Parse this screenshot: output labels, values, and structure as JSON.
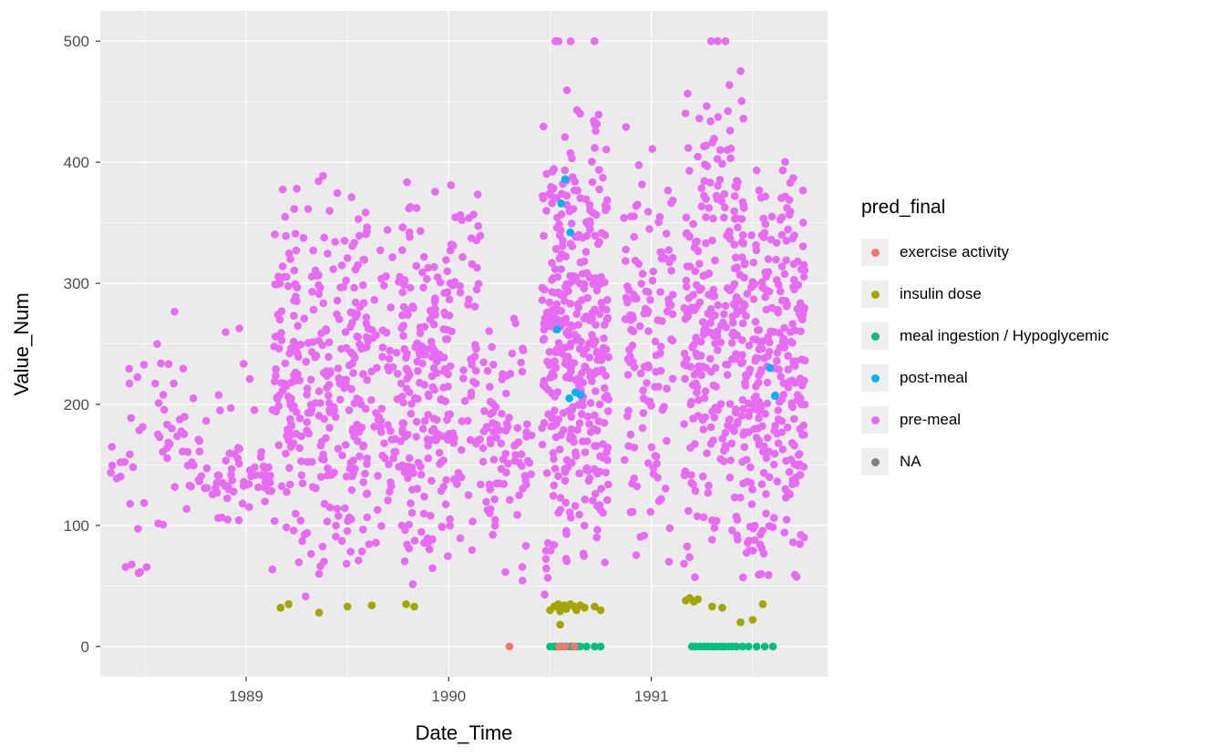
{
  "chart_data": {
    "type": "scatter",
    "title": "",
    "xlabel": "Date_Time",
    "ylabel": "Value_Num",
    "x_ticks": [
      1989,
      1990,
      1991
    ],
    "y_ticks": [
      0,
      100,
      200,
      300,
      400,
      500
    ],
    "x_minor": [
      1988.5,
      1989.5,
      1990.5,
      1991.5
    ],
    "y_minor": [
      50,
      150,
      250,
      350,
      450
    ],
    "xlim": [
      1988.28,
      1991.87
    ],
    "ylim": [
      -25,
      525
    ],
    "grid": true,
    "legend_position": "right",
    "colors": {
      "panel_bg": "#EBEBEB",
      "grid": "#FFFFFF",
      "tick": "#333333",
      "tick_label": "#4D4D4D",
      "key_bg": "#EFEFEF"
    },
    "legend": {
      "title": "pred_final",
      "entries": [
        {
          "label": "exercise activity",
          "color": "#F8766D"
        },
        {
          "label": "insulin dose",
          "color": "#A3A500"
        },
        {
          "label": "meal ingestion / Hypoglycemic",
          "color": "#00BF7D"
        },
        {
          "label": "post-meal",
          "color": "#00B0F6"
        },
        {
          "label": "pre-meal",
          "color": "#E76BF3"
        },
        {
          "label": "NA",
          "color": "#7F7F7F"
        }
      ]
    },
    "seed": 42,
    "point_radius": 4.3,
    "series": [
      {
        "name": "pre-meal",
        "color": "#E76BF3",
        "clusters": [
          {
            "x": [
              1988.32,
              1988.39
            ],
            "y": [
              112,
              172
            ],
            "n": 6,
            "d": "uni"
          },
          {
            "x": [
              1988.4,
              1988.53
            ],
            "y": [
              55,
              262
            ],
            "n": 18,
            "d": "uni"
          },
          {
            "x": [
              1988.55,
              1988.69
            ],
            "y": [
              58,
              290
            ],
            "n": 26,
            "d": "tri"
          },
          {
            "x": [
              1988.69,
              1988.82
            ],
            "y": [
              88,
              232
            ],
            "n": 20,
            "d": "tri"
          },
          {
            "x": [
              1988.83,
              1989.01
            ],
            "y": [
              100,
              170
            ],
            "n": 30,
            "d": "tri"
          },
          {
            "x": [
              1988.86,
              1989.05
            ],
            "y": [
              170,
              265
            ],
            "n": 8,
            "d": "uni"
          },
          {
            "x": [
              1989.01,
              1989.13
            ],
            "y": [
              108,
              162
            ],
            "n": 24,
            "d": "tri"
          },
          {
            "x": [
              1989.13,
              1989.31
            ],
            "y": [
              35,
              402
            ],
            "n": 120,
            "d": "tri"
          },
          {
            "x": [
              1989.31,
              1989.56
            ],
            "y": [
              40,
              400
            ],
            "n": 160,
            "d": "tri"
          },
          {
            "x": [
              1989.56,
              1989.76
            ],
            "y": [
              60,
              365
            ],
            "n": 90,
            "d": "tri"
          },
          {
            "x": [
              1989.76,
              1990.01
            ],
            "y": [
              40,
              395
            ],
            "n": 200,
            "d": "tri"
          },
          {
            "x": [
              1990.01,
              1990.16
            ],
            "y": [
              50,
              418
            ],
            "n": 60,
            "d": "tri"
          },
          {
            "x": [
              1990.16,
              1990.41
            ],
            "y": [
              45,
              300
            ],
            "n": 90,
            "d": "tri"
          },
          {
            "x": [
              1990.46,
              1990.61
            ],
            "y": [
              25,
              478
            ],
            "n": 180,
            "d": "tri"
          },
          {
            "x": [
              1990.61,
              1990.79
            ],
            "y": [
              30,
              462
            ],
            "n": 200,
            "d": "tri"
          },
          {
            "x": [
              1990.86,
              1991.11
            ],
            "y": [
              58,
              445
            ],
            "n": 130,
            "d": "tri"
          },
          {
            "x": [
              1991.16,
              1991.46
            ],
            "y": [
              35,
              492
            ],
            "n": 280,
            "d": "tri"
          },
          {
            "x": [
              1991.46,
              1991.76
            ],
            "y": [
              30,
              432
            ],
            "n": 280,
            "d": "tri"
          },
          {
            "x": [
              1990.52,
              1990.67
            ],
            "y": [
              500,
              500
            ],
            "n": 4,
            "d": "uni"
          },
          {
            "x": [
              1990.71,
              1990.72
            ],
            "y": [
              500,
              500
            ],
            "n": 1,
            "d": "uni"
          },
          {
            "x": [
              1991.27,
              1991.37
            ],
            "y": [
              500,
              500
            ],
            "n": 3,
            "d": "uni"
          }
        ]
      },
      {
        "name": "insulin dose",
        "color": "#A3A500",
        "points": [
          [
            1989.17,
            32
          ],
          [
            1989.21,
            35
          ],
          [
            1989.36,
            28
          ],
          [
            1989.5,
            33
          ],
          [
            1989.62,
            34
          ],
          [
            1989.79,
            35
          ],
          [
            1989.83,
            33
          ],
          [
            1990.5,
            30
          ],
          [
            1990.52,
            33
          ],
          [
            1990.54,
            35
          ],
          [
            1990.55,
            29
          ],
          [
            1990.57,
            34
          ],
          [
            1990.58,
            31
          ],
          [
            1990.6,
            35
          ],
          [
            1990.62,
            33
          ],
          [
            1990.63,
            30
          ],
          [
            1990.65,
            34
          ],
          [
            1990.67,
            32
          ],
          [
            1990.72,
            33
          ],
          [
            1990.75,
            30
          ],
          [
            1990.55,
            18
          ],
          [
            1991.17,
            38
          ],
          [
            1991.19,
            40
          ],
          [
            1991.21,
            37
          ],
          [
            1991.23,
            39
          ],
          [
            1991.3,
            33
          ],
          [
            1991.35,
            32
          ],
          [
            1991.44,
            20
          ],
          [
            1991.5,
            22
          ],
          [
            1991.55,
            35
          ]
        ]
      },
      {
        "name": "meal ingestion / Hypoglycemic",
        "color": "#00BF7D",
        "points": [
          [
            1990.5,
            0
          ],
          [
            1990.52,
            0
          ],
          [
            1990.53,
            0
          ],
          [
            1990.55,
            0
          ],
          [
            1990.56,
            0
          ],
          [
            1990.58,
            0
          ],
          [
            1990.6,
            0
          ],
          [
            1990.61,
            0
          ],
          [
            1990.63,
            0
          ],
          [
            1990.65,
            0
          ],
          [
            1990.68,
            0
          ],
          [
            1990.72,
            0
          ],
          [
            1990.75,
            0
          ],
          [
            1991.2,
            0
          ],
          [
            1991.22,
            0
          ],
          [
            1991.24,
            0
          ],
          [
            1991.26,
            0
          ],
          [
            1991.28,
            0
          ],
          [
            1991.3,
            0
          ],
          [
            1991.32,
            0
          ],
          [
            1991.34,
            0
          ],
          [
            1991.36,
            0
          ],
          [
            1991.38,
            0
          ],
          [
            1991.4,
            0
          ],
          [
            1991.42,
            0
          ],
          [
            1991.45,
            0
          ],
          [
            1991.48,
            0
          ],
          [
            1991.52,
            0
          ],
          [
            1991.56,
            0
          ],
          [
            1991.6,
            0
          ]
        ]
      },
      {
        "name": "post-meal",
        "color": "#00B0F6",
        "points": [
          [
            1990.535,
            262
          ],
          [
            1990.555,
            366
          ],
          [
            1990.575,
            386
          ],
          [
            1990.6,
            342
          ],
          [
            1990.595,
            205
          ],
          [
            1990.625,
            210
          ],
          [
            1990.65,
            208
          ],
          [
            1991.585,
            230
          ],
          [
            1991.61,
            207
          ]
        ]
      },
      {
        "name": "exercise activity",
        "color": "#F8766D",
        "points": [
          [
            1990.3,
            0
          ],
          [
            1990.545,
            0
          ],
          [
            1990.575,
            0
          ],
          [
            1990.62,
            0
          ]
        ]
      }
    ]
  }
}
